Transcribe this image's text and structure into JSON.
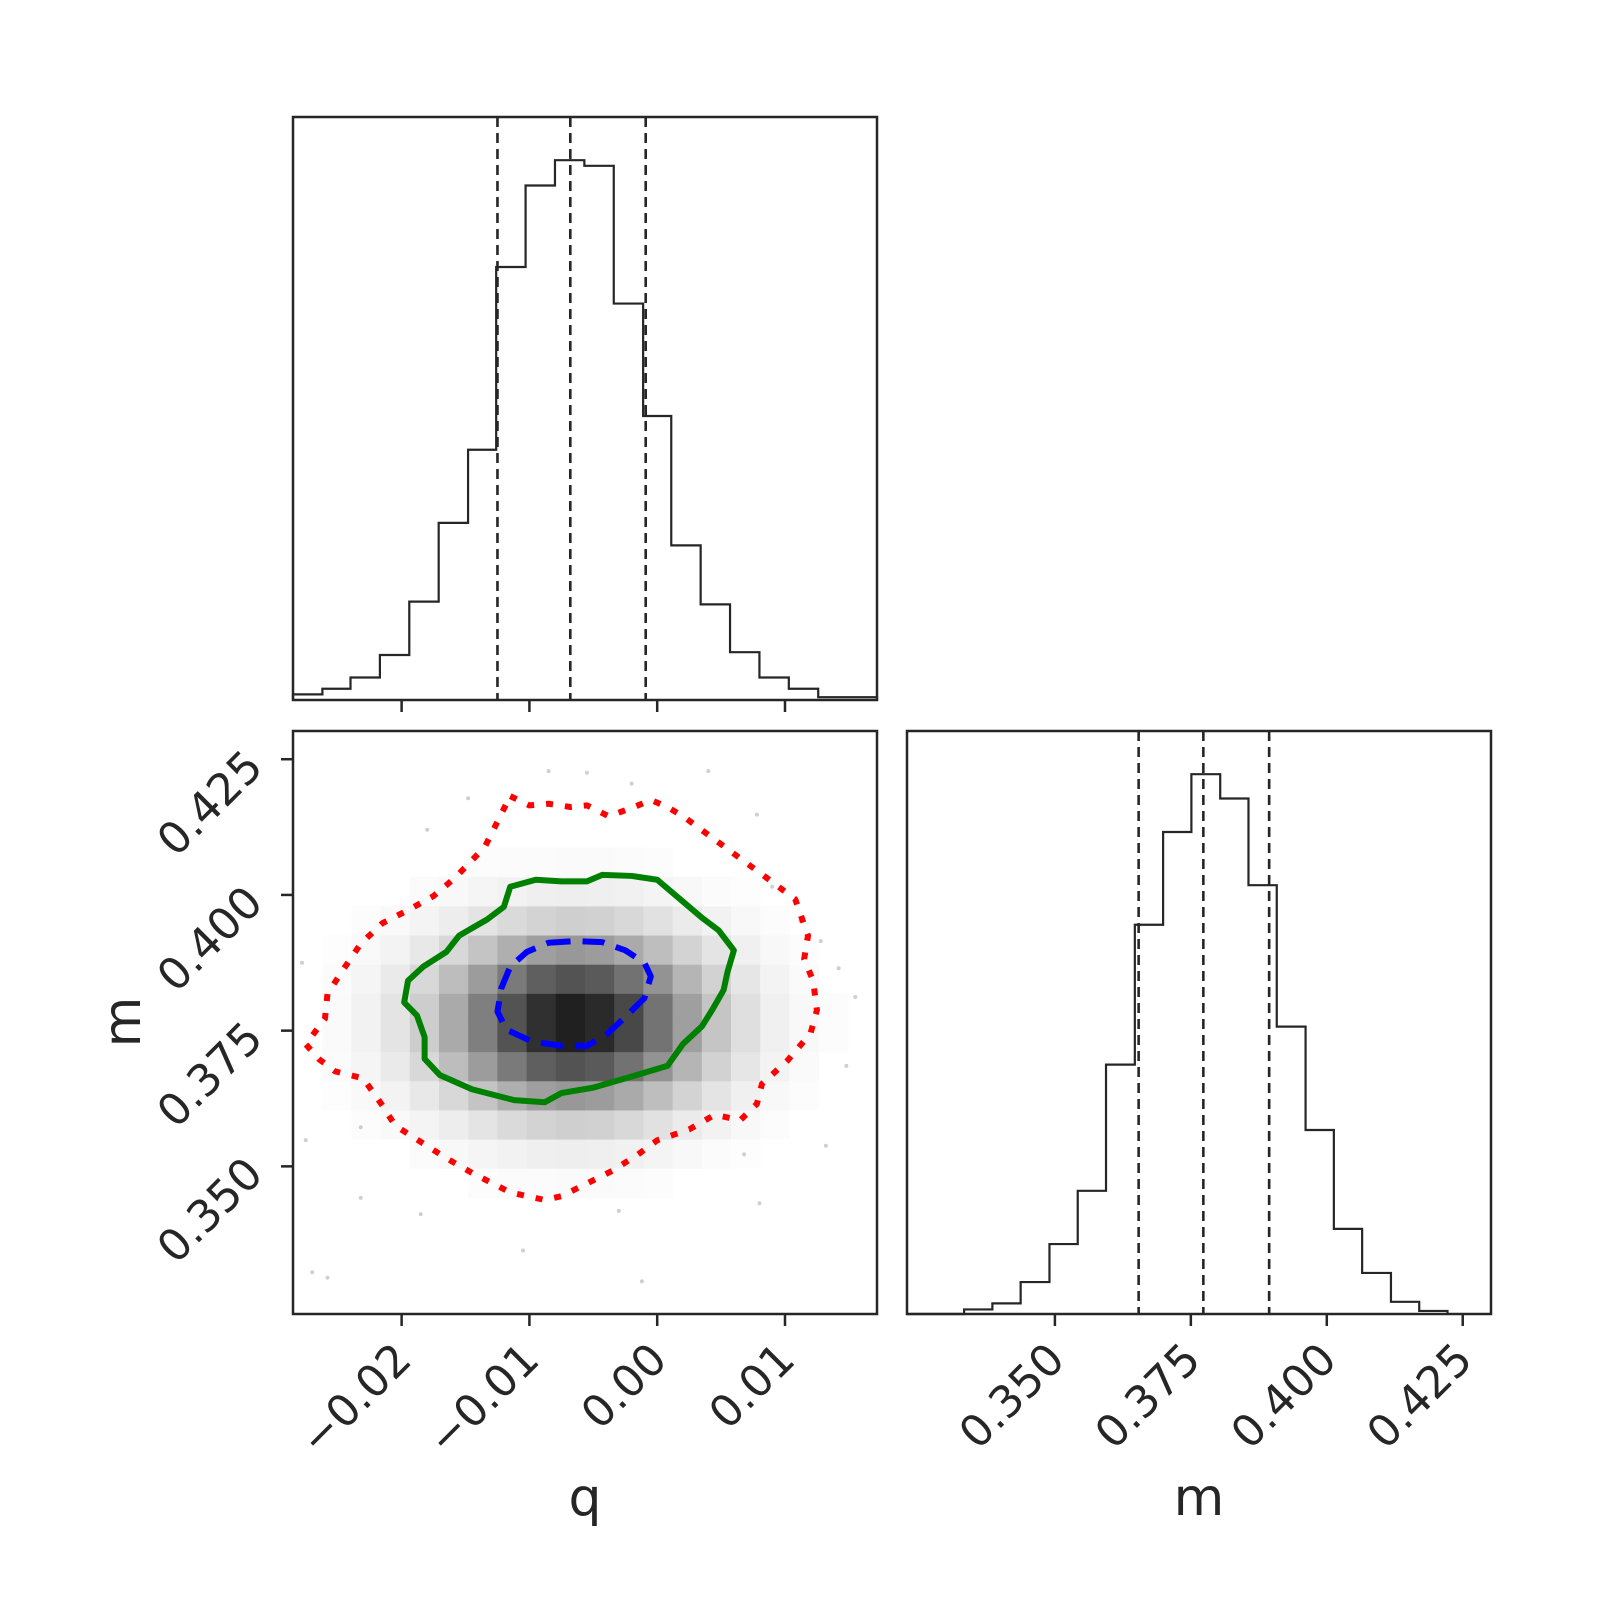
{
  "chart_data": [
    {
      "panel": "q-marginal",
      "type": "histogram",
      "parameter": "q",
      "xlim": [
        -0.0285,
        0.0172
      ],
      "bin_edges": [
        -0.0285,
        -0.0262,
        -0.024,
        -0.0217,
        -0.0194,
        -0.0171,
        -0.0148,
        -0.0126,
        -0.0103,
        -0.008,
        -0.0057,
        -0.0034,
        -0.0011,
        0.0011,
        0.0034,
        0.0057,
        0.008,
        0.0103,
        0.0126,
        0.0149,
        0.0172
      ],
      "counts": [
        2,
        4,
        8,
        16,
        35,
        63,
        89,
        154,
        183,
        192,
        190,
        141,
        101,
        55,
        34,
        17,
        8,
        4,
        1,
        1
      ],
      "quantiles": [
        -0.0125,
        -0.0068,
        -0.0009
      ],
      "yaxis_ticks": "hidden"
    },
    {
      "panel": "m-vs-q-2d",
      "type": "heatmap",
      "xlabel": "q",
      "ylabel": "m",
      "xlim": [
        -0.0285,
        0.0172
      ],
      "ylim": [
        0.3228,
        0.4302
      ],
      "x_ticks": [
        -0.02,
        -0.01,
        0.0,
        0.01
      ],
      "x_tick_labels": [
        "−0.02",
        "−0.01",
        "0.00",
        "0.01"
      ],
      "y_ticks": [
        0.35,
        0.375,
        0.4,
        0.425
      ],
      "y_tick_labels": [
        "0.350",
        "0.375",
        "0.400",
        "0.425"
      ],
      "density": {
        "center": [
          -0.0065,
          0.3765
        ],
        "sigma": [
          0.0068,
          0.0106
        ],
        "grid_x_range": [
          -0.0285,
          0.0172
        ],
        "grid_y_range": [
          0.3228,
          0.4302
        ],
        "bins": 20
      },
      "contours": [
        {
          "level": "inner",
          "color": "#0000ff",
          "style": "dashed",
          "points": [
            [
              -0.0085,
              0.3912
            ],
            [
              -0.0063,
              0.3915
            ],
            [
              -0.0043,
              0.3913
            ],
            [
              -0.0025,
              0.3898
            ],
            [
              -0.001,
              0.3875
            ],
            [
              -0.0005,
              0.385
            ],
            [
              -0.001,
              0.381
            ],
            [
              -0.0025,
              0.3775
            ],
            [
              -0.004,
              0.3742
            ],
            [
              -0.0055,
              0.3722
            ],
            [
              -0.0075,
              0.3722
            ],
            [
              -0.0098,
              0.373
            ],
            [
              -0.0118,
              0.3752
            ],
            [
              -0.0125,
              0.3785
            ],
            [
              -0.0122,
              0.3828
            ],
            [
              -0.0115,
              0.3868
            ],
            [
              -0.0102,
              0.3895
            ]
          ]
        },
        {
          "level": "middle",
          "color": "#008000",
          "style": "solid",
          "points": [
            [
              -0.0115,
              0.4015
            ],
            [
              -0.0095,
              0.4028
            ],
            [
              -0.0075,
              0.4025
            ],
            [
              -0.0055,
              0.4025
            ],
            [
              -0.0043,
              0.4037
            ],
            [
              -0.002,
              0.4035
            ],
            [
              0.0,
              0.4028
            ],
            [
              0.002,
              0.3988
            ],
            [
              0.0035,
              0.3958
            ],
            [
              0.0048,
              0.3935
            ],
            [
              0.006,
              0.3898
            ],
            [
              0.0055,
              0.3858
            ],
            [
              0.0052,
              0.3825
            ],
            [
              0.0043,
              0.3788
            ],
            [
              0.0035,
              0.3758
            ],
            [
              0.002,
              0.3725
            ],
            [
              0.0008,
              0.3685
            ],
            [
              -0.0025,
              0.3662
            ],
            [
              -0.005,
              0.3645
            ],
            [
              -0.0075,
              0.3635
            ],
            [
              -0.0088,
              0.3618
            ],
            [
              -0.0112,
              0.3622
            ],
            [
              -0.0145,
              0.3642
            ],
            [
              -0.017,
              0.3668
            ],
            [
              -0.0182,
              0.3698
            ],
            [
              -0.0182,
              0.3738
            ],
            [
              -0.0188,
              0.3778
            ],
            [
              -0.0198,
              0.3802
            ],
            [
              -0.0195,
              0.3842
            ],
            [
              -0.0183,
              0.3868
            ],
            [
              -0.0165,
              0.3895
            ],
            [
              -0.0155,
              0.3925
            ],
            [
              -0.0133,
              0.3955
            ],
            [
              -0.012,
              0.3978
            ]
          ]
        },
        {
          "level": "outer",
          "color": "#ff0000",
          "style": "dotted",
          "points": [
            [
              -0.0115,
              0.4182
            ],
            [
              -0.01,
              0.4165
            ],
            [
              -0.0085,
              0.4168
            ],
            [
              -0.0068,
              0.4162
            ],
            [
              -0.0055,
              0.4165
            ],
            [
              -0.0038,
              0.4145
            ],
            [
              -0.0018,
              0.4162
            ],
            [
              -0.0005,
              0.4175
            ],
            [
              0.0008,
              0.4162
            ],
            [
              0.0022,
              0.4142
            ],
            [
              0.0045,
              0.4102
            ],
            [
              0.0068,
              0.4062
            ],
            [
              0.0082,
              0.4038
            ],
            [
              0.0108,
              0.3992
            ],
            [
              0.0118,
              0.3925
            ],
            [
              0.0115,
              0.3882
            ],
            [
              0.0122,
              0.3842
            ],
            [
              0.0125,
              0.3788
            ],
            [
              0.012,
              0.3745
            ],
            [
              0.0102,
              0.3695
            ],
            [
              0.0082,
              0.3652
            ],
            [
              0.0078,
              0.3615
            ],
            [
              0.0065,
              0.3585
            ],
            [
              0.0045,
              0.3595
            ],
            [
              0.0025,
              0.3568
            ],
            [
              0.0,
              0.3548
            ],
            [
              -0.0015,
              0.3522
            ],
            [
              -0.0035,
              0.3492
            ],
            [
              -0.0058,
              0.3465
            ],
            [
              -0.0075,
              0.3445
            ],
            [
              -0.0088,
              0.3438
            ],
            [
              -0.0115,
              0.3452
            ],
            [
              -0.0145,
              0.3488
            ],
            [
              -0.0165,
              0.3515
            ],
            [
              -0.0185,
              0.3545
            ],
            [
              -0.0205,
              0.3575
            ],
            [
              -0.0215,
              0.3612
            ],
            [
              -0.023,
              0.3662
            ],
            [
              -0.0252,
              0.3675
            ],
            [
              -0.0265,
              0.3698
            ],
            [
              -0.0275,
              0.3725
            ],
            [
              -0.026,
              0.3772
            ],
            [
              -0.0258,
              0.3818
            ],
            [
              -0.0245,
              0.3865
            ],
            [
              -0.0232,
              0.391
            ],
            [
              -0.0215,
              0.3948
            ],
            [
              -0.0195,
              0.3972
            ],
            [
              -0.0175,
              0.3998
            ],
            [
              -0.0158,
              0.4032
            ],
            [
              -0.0135,
              0.4088
            ],
            [
              -0.0125,
              0.4135
            ]
          ]
        }
      ],
      "scatter_outliers": [
        [
          -0.0055,
          0.4225
        ],
        [
          -0.002,
          0.4205
        ],
        [
          -0.018,
          0.412
        ],
        [
          0.004,
          0.4228
        ],
        [
          0.009,
          0.4015
        ],
        [
          0.0112,
          0.3952
        ],
        [
          0.0155,
          0.3812
        ],
        [
          0.0142,
          0.3865
        ],
        [
          -0.0275,
          0.3548
        ],
        [
          -0.0232,
          0.3572
        ],
        [
          0.0068,
          0.3522
        ],
        [
          0.008,
          0.3432
        ],
        [
          -0.0185,
          0.3412
        ],
        [
          -0.027,
          0.3305
        ],
        [
          -0.0258,
          0.3295
        ],
        [
          -0.0105,
          0.3345
        ],
        [
          -0.0012,
          0.3288
        ],
        [
          -0.0085,
          0.4228
        ],
        [
          -0.0148,
          0.4178
        ],
        [
          0.0078,
          0.4148
        ],
        [
          0.0128,
          0.3915
        ],
        [
          0.0148,
          0.3685
        ],
        [
          -0.0278,
          0.3875
        ],
        [
          0.0132,
          0.3538
        ],
        [
          -0.003,
          0.3418
        ],
        [
          -0.0232,
          0.3442
        ]
      ]
    },
    {
      "panel": "m-marginal",
      "type": "histogram",
      "parameter": "m",
      "xlabel": "m",
      "xlim": [
        0.3228,
        0.4302
      ],
      "x_ticks": [
        0.35,
        0.375,
        0.4,
        0.425
      ],
      "x_tick_labels": [
        "0.350",
        "0.375",
        "0.400",
        "0.425"
      ],
      "bin_edges": [
        0.3228,
        0.328,
        0.3333,
        0.3385,
        0.3437,
        0.349,
        0.3542,
        0.3594,
        0.3647,
        0.3699,
        0.3751,
        0.3804,
        0.3856,
        0.3908,
        0.3961,
        0.4013,
        0.4065,
        0.4118,
        0.417,
        0.4222
      ],
      "counts": [
        0,
        0,
        3,
        7,
        21,
        46,
        81,
        164,
        256,
        317,
        355,
        339,
        282,
        189,
        121,
        56,
        27,
        8,
        2
      ],
      "quantiles": [
        0.3654,
        0.3773,
        0.3894
      ],
      "yaxis_ticks": "hidden"
    }
  ]
}
